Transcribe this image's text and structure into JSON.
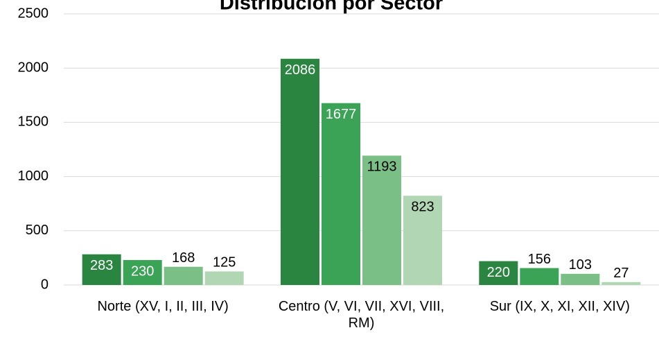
{
  "chart_data": {
    "type": "bar",
    "title": "Distribución por Sector",
    "categories": [
      "Norte (XV, I, II, III, IV)",
      "Centro (V, VI, VII, XVI, VIII, RM)",
      "Sur (IX, X, XI, XII, XIV)"
    ],
    "series": [
      {
        "color": "#2a8540",
        "values": [
          283,
          2086,
          220
        ]
      },
      {
        "color": "#3aa356",
        "values": [
          230,
          1677,
          156
        ]
      },
      {
        "color": "#79bf86",
        "values": [
          168,
          1193,
          103
        ]
      },
      {
        "color": "#b1d6b3",
        "values": [
          125,
          823,
          27
        ]
      }
    ],
    "ylim": [
      0,
      2500
    ],
    "yticks": [
      0,
      500,
      1000,
      1500,
      2000,
      2500
    ],
    "grid": true
  }
}
